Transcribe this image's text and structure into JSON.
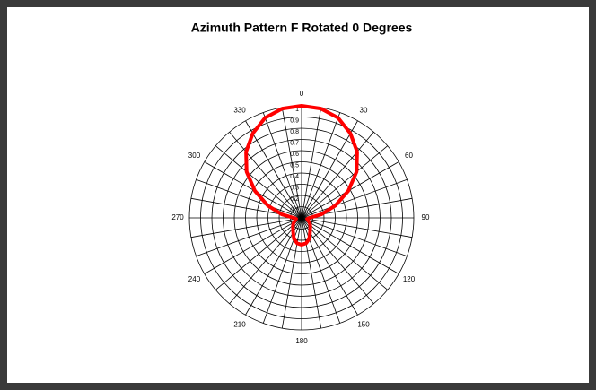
{
  "chart_data": {
    "type": "polar",
    "title": "Azimuth Pattern F Rotated 0 Degrees",
    "x": [
      0,
      10,
      20,
      30,
      40,
      50,
      60,
      70,
      80,
      90,
      100,
      110,
      120,
      130,
      140,
      150,
      160,
      170,
      180,
      190,
      200,
      210,
      220,
      230,
      240,
      250,
      260,
      270,
      280,
      290,
      300,
      310,
      320,
      330,
      340,
      350
    ],
    "series": [
      {
        "name": "Pattern F",
        "color": "#ff0000",
        "values": [
          1,
          0.99,
          0.95,
          0.87,
          0.77,
          0.64,
          0.48,
          0.32,
          0.18,
          0.07,
          0.05,
          0.06,
          0.08,
          0.1,
          0.12,
          0.15,
          0.2,
          0.23,
          0.24,
          0.23,
          0.2,
          0.15,
          0.12,
          0.1,
          0.08,
          0.06,
          0.05,
          0.07,
          0.18,
          0.32,
          0.48,
          0.64,
          0.77,
          0.87,
          0.95,
          0.99
        ]
      }
    ],
    "xticks": [
      0,
      30,
      60,
      90,
      120,
      150,
      180,
      210,
      240,
      270,
      300,
      330
    ],
    "angular_grid_step": 10,
    "ylim": [
      0,
      1
    ],
    "yticks": [
      0.1,
      0.2,
      0.3,
      0.4,
      0.5,
      0.6,
      0.7,
      0.8,
      0.9,
      1
    ],
    "grid": true
  }
}
